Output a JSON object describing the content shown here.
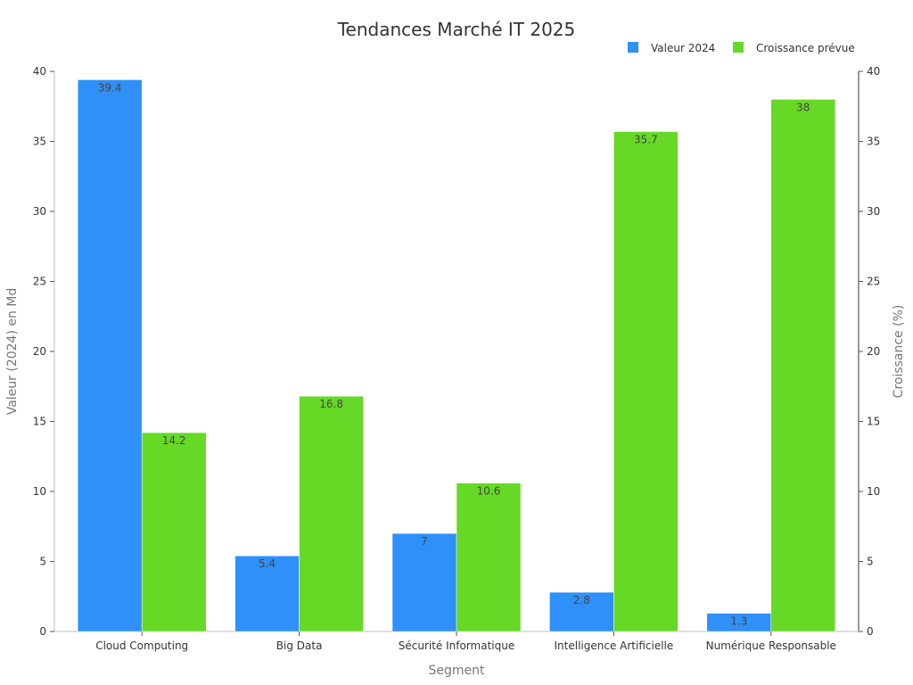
{
  "chart_data": {
    "type": "bar",
    "title": "Tendances Marché IT 2025",
    "xlabel": "Segment",
    "ylabel_left": "Valeur (2024) en Md",
    "ylabel_right": "Croissance (%)",
    "categories": [
      "Cloud Computing",
      "Big Data",
      "Sécurité Informatique",
      "Intelligence Artificielle",
      "Numérique Responsable"
    ],
    "series": [
      {
        "name": "Valeur 2024",
        "axis": "left",
        "color": "#2e90f8",
        "values": [
          39.4,
          5.4,
          7,
          2.8,
          1.3
        ]
      },
      {
        "name": "Croissance prévue",
        "axis": "right",
        "color": "#66d926",
        "values": [
          14.2,
          16.8,
          10.6,
          35.7,
          38
        ]
      }
    ],
    "ylim_left": [
      0,
      40
    ],
    "ylim_right": [
      0,
      40
    ],
    "yticks_left": [
      "0",
      "5",
      "10",
      "15",
      "20",
      "25",
      "30",
      "35",
      "40"
    ],
    "yticks_right": [
      "0",
      "5",
      "10",
      "15",
      "20",
      "25",
      "30",
      "35",
      "40"
    ],
    "legend_position": "top-right",
    "grid": false
  }
}
